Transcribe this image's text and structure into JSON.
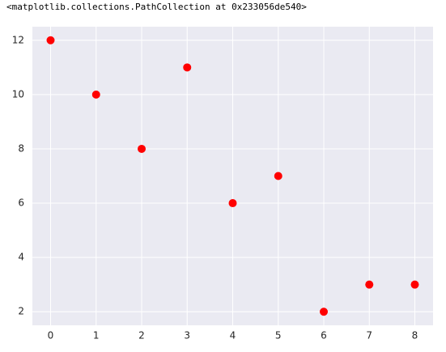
{
  "output_text": "<matplotlib.collections.PathCollection at 0x233056de540>",
  "chart_data": {
    "type": "scatter",
    "x": [
      0,
      1,
      2,
      3,
      4,
      5,
      6,
      7,
      8
    ],
    "values": [
      12,
      10,
      8,
      11,
      6,
      7,
      2,
      3,
      3
    ],
    "color": "#ff0000",
    "xlim": [
      -0.4,
      8.4
    ],
    "ylim": [
      1.5,
      12.5
    ],
    "xticks": [
      0,
      1,
      2,
      3,
      4,
      5,
      6,
      7,
      8
    ],
    "yticks": [
      2,
      4,
      6,
      8,
      10,
      12
    ],
    "grid": true
  }
}
